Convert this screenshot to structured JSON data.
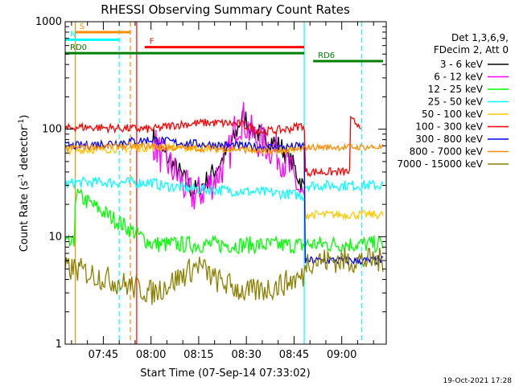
{
  "chart_data": {
    "type": "line",
    "title": "RHESSI Observing Summary Count Rates",
    "xlabel": "Start Time (07-Sep-14 07:33:02)",
    "ylabel_main": "Count Rate (s",
    "ylabel_sup1": "-1",
    "ylabel_mid": " detector",
    "ylabel_sup2": "-1",
    "ylabel_end": ")",
    "yscale": "log",
    "ylim": [
      1,
      1000
    ],
    "xlim_minutes": [
      0,
      101
    ],
    "x_ticks": [
      {
        "minute": 12,
        "label": "07:45"
      },
      {
        "minute": 27,
        "label": "08:00"
      },
      {
        "minute": 42,
        "label": "08:15"
      },
      {
        "minute": 57,
        "label": "08:30"
      },
      {
        "minute": 72,
        "label": "08:45"
      },
      {
        "minute": 87,
        "label": "09:00"
      }
    ],
    "y_ticks": [
      {
        "value": 1,
        "label": "1"
      },
      {
        "value": 10,
        "label": "10"
      },
      {
        "value": 100,
        "label": "100"
      },
      {
        "value": 1000,
        "label": "1000"
      }
    ],
    "legend_header": [
      "Det 1,3,6,9,",
      "FDecim 2, Att 0"
    ],
    "timestamp": "19-Oct-2021 17:28",
    "series": [
      {
        "name": "3 - 6 keV",
        "color": "#000000",
        "x": [
          27.5,
          30,
          33,
          36,
          38,
          40,
          42,
          44,
          46,
          48,
          50,
          52,
          54,
          55,
          56,
          57,
          58,
          59,
          60,
          61,
          62,
          64,
          66,
          68,
          70,
          72,
          73,
          74,
          75.2
        ],
        "y": [
          88,
          65,
          50,
          40,
          32,
          27,
          28,
          32,
          38,
          45,
          55,
          70,
          95,
          120,
          130,
          125,
          110,
          100,
          95,
          90,
          85,
          82,
          75,
          68,
          55,
          45,
          38,
          33,
          28
        ]
      },
      {
        "name": "6 - 12 keV",
        "color": "#ff00ff",
        "x": [
          27.5,
          30,
          33,
          36,
          38,
          40,
          42,
          44,
          46,
          48,
          50,
          52,
          53,
          54,
          55,
          56,
          57,
          58,
          59,
          60,
          62,
          64,
          66,
          68,
          70,
          72,
          73,
          74,
          75.2
        ],
        "y": [
          80,
          58,
          45,
          35,
          28,
          24,
          25,
          28,
          32,
          38,
          48,
          65,
          90,
          110,
          120,
          125,
          110,
          95,
          88,
          82,
          75,
          70,
          62,
          55,
          45,
          35,
          30,
          25,
          22
        ]
      },
      {
        "name": "12 - 25 keV",
        "color": "#00ff00",
        "x": [
          0,
          3,
          3.2,
          27.5,
          75.2,
          75.5,
          100
        ],
        "y": [
          8.5,
          8.5,
          25,
          8.5,
          8.3,
          8.5,
          8.5
        ]
      },
      {
        "name": "25 - 50 keV",
        "color": "#00ffff",
        "x": [
          0,
          3,
          3.2,
          27.5,
          30,
          40,
          50,
          60,
          70,
          75.2,
          75.5,
          100
        ],
        "y": [
          30,
          32,
          32,
          32,
          30,
          28,
          27,
          26,
          25,
          24,
          30,
          30
        ]
      },
      {
        "name": "50 - 100 keV",
        "color": "#ffc800",
        "x": [
          0,
          3.2,
          27.5,
          35,
          45,
          55,
          62,
          70,
          75.2,
          75.5,
          100
        ],
        "y": [
          64,
          64,
          68,
          68,
          67,
          66,
          64,
          66,
          68,
          16,
          16
        ]
      },
      {
        "name": "100 - 300 keV",
        "color": "#ff0000",
        "x": [
          0,
          3.2,
          27.5,
          35,
          45,
          55,
          62,
          70,
          75.2,
          75.5,
          89.5,
          89.8,
          93
        ],
        "y": [
          100,
          105,
          100,
          110,
          115,
          112,
          95,
          100,
          110,
          40,
          40,
          120,
          110
        ]
      },
      {
        "name": "300 - 800 keV",
        "color": "#0000ff",
        "x": [
          0,
          3.2,
          27.5,
          35,
          45,
          55,
          62,
          70,
          75.2,
          75.5,
          100
        ],
        "y": [
          70,
          70,
          80,
          75,
          72,
          70,
          68,
          68,
          70,
          6,
          6
        ]
      },
      {
        "name": "800 - 7000 keV",
        "color": "#ff8c00",
        "x": [
          0,
          3.2,
          27.5,
          35,
          45,
          55,
          62,
          70,
          75.2,
          75.5,
          100
        ],
        "y": [
          65,
          68,
          70,
          67,
          66,
          65,
          62,
          63,
          65,
          68,
          68
        ]
      },
      {
        "name": "7000 - 15000 keV",
        "color": "#8b8000",
        "x": [
          0,
          3.2,
          27.5,
          35,
          42,
          47,
          52,
          57,
          62,
          67,
          72,
          75.2,
          75.5,
          100
        ],
        "y": [
          5,
          5,
          3,
          4,
          5.5,
          4,
          3.5,
          3,
          3.2,
          3.5,
          4,
          4.2,
          6,
          6
        ]
      }
    ],
    "state_bars": [
      {
        "label": "S",
        "color": "#ff8c00",
        "x_start": 3,
        "x_end": 20.5,
        "y": 800
      },
      {
        "label": "N",
        "color": "#00ffff",
        "x_start": 0,
        "x_end": 17,
        "y": 680
      },
      {
        "label": "F",
        "color": "#ff0000",
        "x_start": 25,
        "x_end": 75.2,
        "y": 580
      },
      {
        "label": "RD0",
        "color": "#008000",
        "x_start": 0,
        "x_end": 75.2,
        "y": 510
      },
      {
        "label": "RD6",
        "color": "#008000",
        "x_start": 78,
        "x_end": 100,
        "y": 430
      }
    ],
    "boundary_lines": [
      {
        "x": 3.2,
        "color": "#ff8c00",
        "dashed": false
      },
      {
        "x": 17,
        "color": "#00ffff",
        "dashed": true
      },
      {
        "x": 20.5,
        "color": "#ff8c00",
        "dashed": true
      },
      {
        "x": 22.5,
        "color": "#ff0000",
        "dashed": false
      },
      {
        "x": 75.2,
        "color": "#00ffff",
        "dashed": false
      },
      {
        "x": 93.3,
        "color": "#00ffff",
        "dashed": true
      }
    ]
  }
}
